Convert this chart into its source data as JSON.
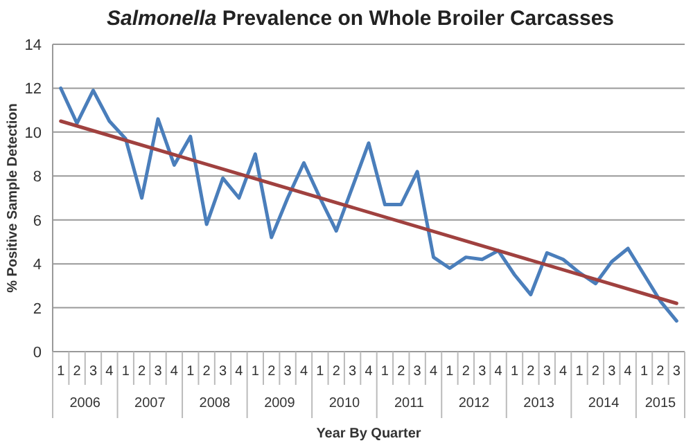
{
  "chart_data": {
    "type": "line",
    "title": "Salmonella Prevalence on Whole Broiler Carcasses",
    "xlabel": "Year By Quarter",
    "ylabel": "% Positive Sample Detection",
    "categories": [
      "1",
      "2",
      "3",
      "4",
      "1",
      "2",
      "3",
      "4",
      "1",
      "2",
      "3",
      "4",
      "1",
      "2",
      "3",
      "4",
      "1",
      "2",
      "3",
      "4",
      "1",
      "2",
      "3",
      "4",
      "1",
      "2",
      "3",
      "4",
      "1",
      "2",
      "3",
      "4",
      "1",
      "2",
      "3",
      "4",
      "1",
      "2",
      "3"
    ],
    "annotations": [
      "2006",
      "2007",
      "2008",
      "2009",
      "2010",
      "2011",
      "2012",
      "2013",
      "2014",
      "2015"
    ],
    "series": [
      {
        "color": "#4a7ebb",
        "values": [
          12,
          10.4,
          11.9,
          10.5,
          9.7,
          7.0,
          10.6,
          8.5,
          9.8,
          5.8,
          7.9,
          7.0,
          9.0,
          5.2,
          7.0,
          8.6,
          7.0,
          5.5,
          7.5,
          9.5,
          6.7,
          6.7,
          8.2,
          4.3,
          3.8,
          4.3,
          4.2,
          4.6,
          3.5,
          2.6,
          4.5,
          4.2,
          3.6,
          3.1,
          4.1,
          4.7,
          3.5,
          2.3,
          1.4
        ]
      },
      {
        "type": "line",
        "color": "#a0413f",
        "values": [
          10.5,
          null,
          null,
          null,
          null,
          null,
          null,
          null,
          null,
          null,
          null,
          null,
          null,
          null,
          null,
          null,
          null,
          null,
          null,
          null,
          null,
          null,
          null,
          null,
          null,
          null,
          null,
          null,
          null,
          null,
          null,
          null,
          null,
          null,
          null,
          null,
          null,
          null,
          2.2
        ]
      }
    ],
    "ylim": [
      0,
      14
    ],
    "yticks": [
      0,
      2,
      4,
      6,
      8,
      10,
      12,
      14
    ],
    "grid": "y",
    "marker": "none",
    "line_style": "solid"
  }
}
